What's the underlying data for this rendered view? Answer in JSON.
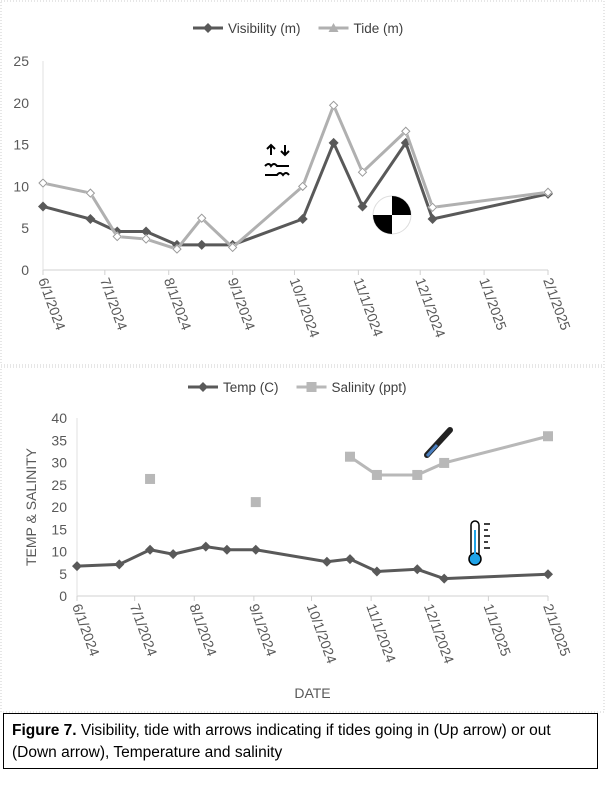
{
  "chart_data": [
    {
      "type": "line",
      "title": "",
      "xlabel": "",
      "ylabel": "",
      "ylim": [
        0,
        25
      ],
      "yticks": [
        "0",
        "5",
        "10",
        "15",
        "20",
        "25"
      ],
      "xticks": [
        "6/1/2024",
        "7/1/2024",
        "8/1/2024",
        "9/1/2024",
        "10/1/2024",
        "11/1/2024",
        "12/1/2024",
        "1/1/2025",
        "2/1/2025"
      ],
      "x_days": [
        0,
        23,
        36,
        50,
        65,
        77,
        92,
        126,
        141,
        155,
        176,
        189,
        245
      ],
      "legend": "top",
      "series": [
        {
          "name": "Visibility (m)",
          "color": "#595959",
          "marker": "diamond",
          "values": [
            7.6,
            6.1,
            4.6,
            4.6,
            3.0,
            3.0,
            3.0,
            6.1,
            15.2,
            7.6,
            15.2,
            6.1,
            9.1
          ]
        },
        {
          "name": "Tide (m)",
          "color": "#b0b0b0",
          "marker": "triangle",
          "values": [
            10.4,
            9.2,
            4.0,
            3.7,
            2.5,
            6.2,
            2.7,
            10.0,
            19.7,
            11.7,
            16.6,
            7.5,
            9.3
          ]
        }
      ]
    },
    {
      "type": "line",
      "title": "",
      "xlabel": "DATE",
      "ylabel": "TEMP & SALINITY",
      "ylim": [
        0,
        40
      ],
      "yticks": [
        "0",
        "5",
        "10",
        "15",
        "20",
        "25",
        "30",
        "35",
        "40"
      ],
      "xticks": [
        "6/1/2024",
        "7/1/2024",
        "8/1/2024",
        "9/1/2024",
        "10/1/2024",
        "11/1/2024",
        "12/1/2024",
        "1/1/2025",
        "2/1/2025"
      ],
      "x_days": [
        0,
        22,
        38,
        50,
        67,
        78,
        93,
        130,
        142,
        156,
        177,
        191,
        245
      ],
      "legend": "top",
      "series": [
        {
          "name": "Temp (C)",
          "color": "#595959",
          "marker": "diamond",
          "values": [
            6.7,
            7.1,
            10.4,
            9.4,
            11.1,
            10.4,
            10.4,
            7.7,
            8.3,
            5.5,
            6.0,
            3.9,
            4.9
          ]
        },
        {
          "name": "Salinity (ppt)",
          "color": "#b8b8b8",
          "marker": "square",
          "values": [
            null,
            null,
            26.3,
            null,
            null,
            null,
            21.1,
            null,
            31.3,
            27.2,
            27.2,
            29.9,
            35.9
          ]
        }
      ]
    }
  ],
  "caption": {
    "label": "Figure 7.",
    "text": " Visibility, tide with arrows indicating if tides going in (Up arrow) or out (Down arrow), Temperature and salinity"
  }
}
